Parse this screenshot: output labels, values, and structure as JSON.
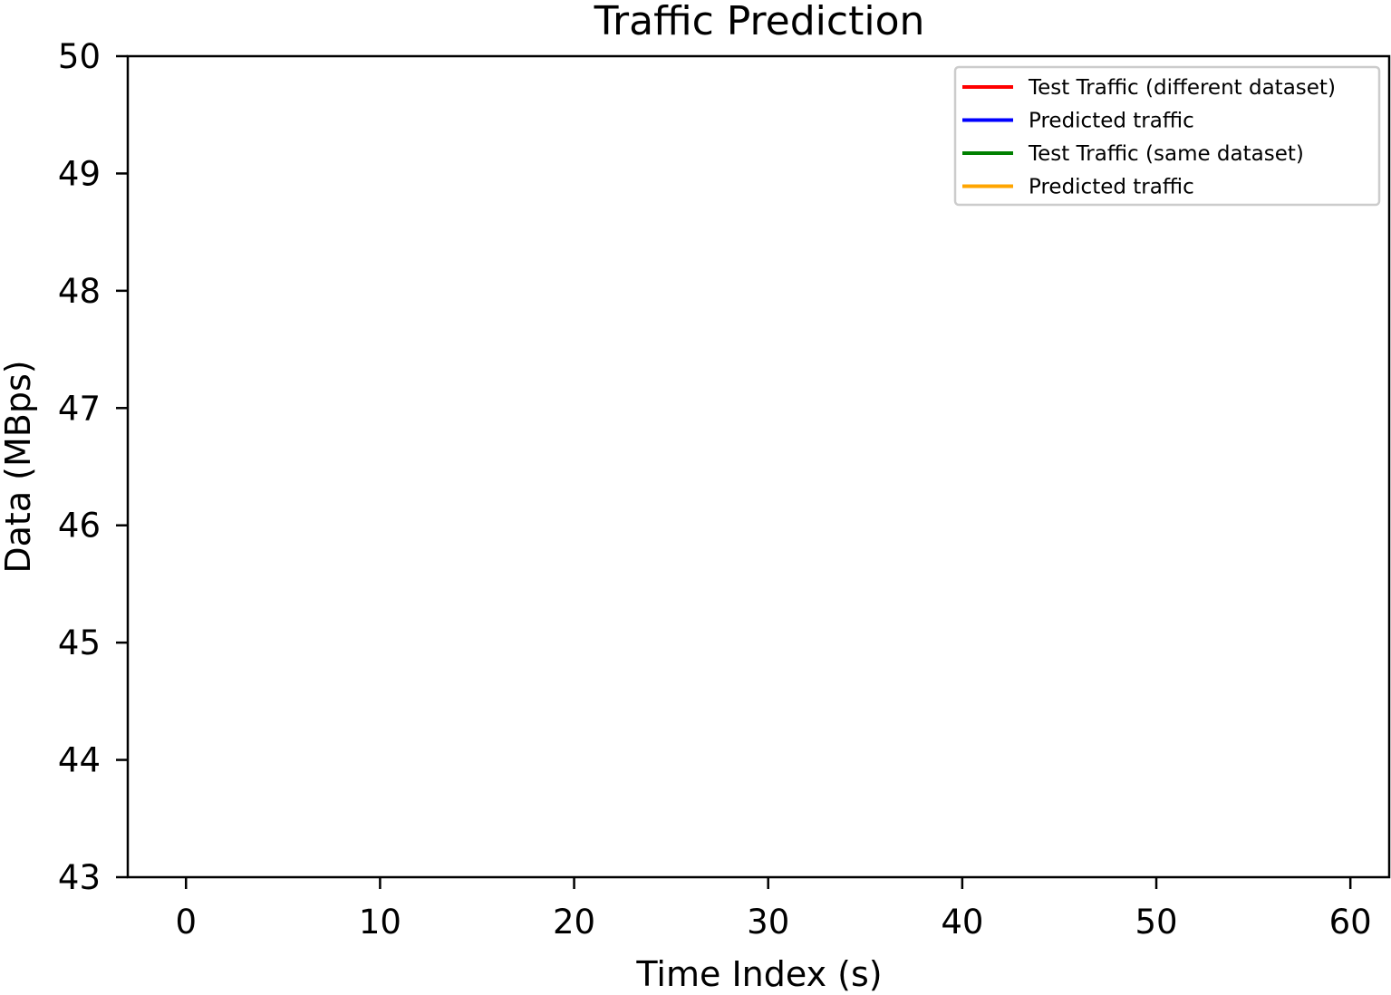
{
  "chart_data": {
    "type": "line",
    "title": "Traffic Prediction",
    "xlabel": "Time Index (s)",
    "ylabel": "Data (MBps)",
    "xlim": [
      -3,
      62
    ],
    "ylim": [
      43,
      50
    ],
    "x_ticks": [
      0,
      10,
      20,
      30,
      40,
      50,
      60
    ],
    "y_ticks": [
      43,
      44,
      45,
      46,
      47,
      48,
      49,
      50
    ],
    "grid": false,
    "legend_position": "top-right",
    "series": [
      {
        "name": "Test Traffic (different dataset)",
        "color": "#ff0000",
        "x": [],
        "y": []
      },
      {
        "name": "Predicted traffic",
        "color": "#0000ff",
        "x": [],
        "y": []
      },
      {
        "name": "Test Traffic (same dataset)",
        "color": "#008000",
        "x": [],
        "y": []
      },
      {
        "name": "Predicted traffic",
        "color": "#ffa500",
        "x": [],
        "y": []
      }
    ]
  }
}
